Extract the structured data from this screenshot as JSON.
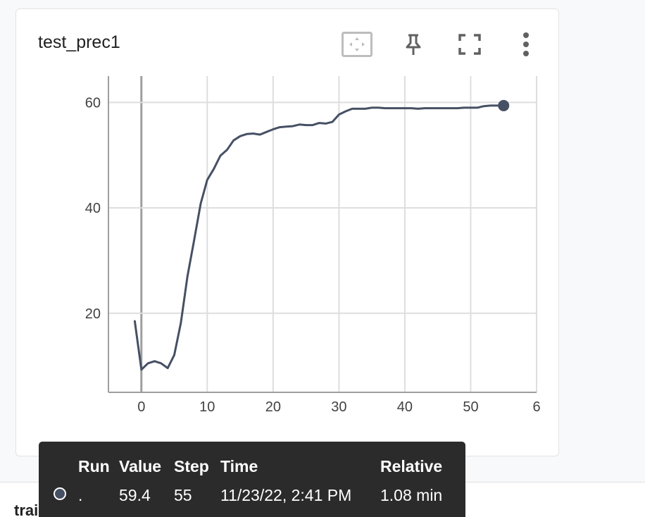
{
  "card": {
    "title": "test_prec1",
    "toolbar": {
      "fit_icon": "fit-domain-icon",
      "pin_icon": "pin-icon",
      "fullscreen_icon": "fullscreen-icon",
      "more_icon": "more-vert-icon"
    }
  },
  "chart_data": {
    "type": "line",
    "title": "",
    "xlabel": "",
    "ylabel": "",
    "xlim": [
      -5,
      60
    ],
    "ylim": [
      5,
      65
    ],
    "x_ticks": [
      "0",
      "10",
      "20",
      "30",
      "40",
      "50",
      "6"
    ],
    "y_ticks": [
      "20",
      "40",
      "60"
    ],
    "grid": true,
    "color": "#465064",
    "series": [
      {
        "x": [
          -1,
          0,
          1,
          2,
          3,
          4,
          5,
          6,
          7,
          8,
          9,
          10,
          11,
          12,
          13,
          14,
          15,
          16,
          17,
          18,
          19,
          20,
          21,
          22,
          23,
          24,
          25,
          26,
          27,
          28,
          29,
          30,
          31,
          32,
          33,
          34,
          35,
          36,
          37,
          38,
          39,
          40,
          41,
          42,
          43,
          44,
          45,
          46,
          47,
          48,
          49,
          50,
          51,
          52,
          53,
          54,
          55
        ],
        "y": [
          18.5,
          9.3,
          10.5,
          10.9,
          10.5,
          9.6,
          12.1,
          18.2,
          27.0,
          33.8,
          40.8,
          45.3,
          47.4,
          49.9,
          51.0,
          52.8,
          53.6,
          54.0,
          54.1,
          53.9,
          54.4,
          54.9,
          55.3,
          55.4,
          55.5,
          55.8,
          55.7,
          55.7,
          56.1,
          56.0,
          56.3,
          57.7,
          58.3,
          58.8,
          58.8,
          58.8,
          59.0,
          59.0,
          58.9,
          58.9,
          58.9,
          58.9,
          58.9,
          58.8,
          58.9,
          58.9,
          58.9,
          58.9,
          58.9,
          58.9,
          59.0,
          59.0,
          59.0,
          59.3,
          59.4,
          59.4,
          59.4
        ]
      }
    ]
  },
  "tooltip": {
    "headers": {
      "run": "Run",
      "value": "Value",
      "step": "Step",
      "time": "Time",
      "relative": "Relative"
    },
    "row": {
      "run": ".",
      "value": "59.4",
      "step": "55",
      "time": "11/23/22, 2:41 PM",
      "relative": "1.08 min"
    }
  },
  "next_card": {
    "title": "train_acc"
  }
}
